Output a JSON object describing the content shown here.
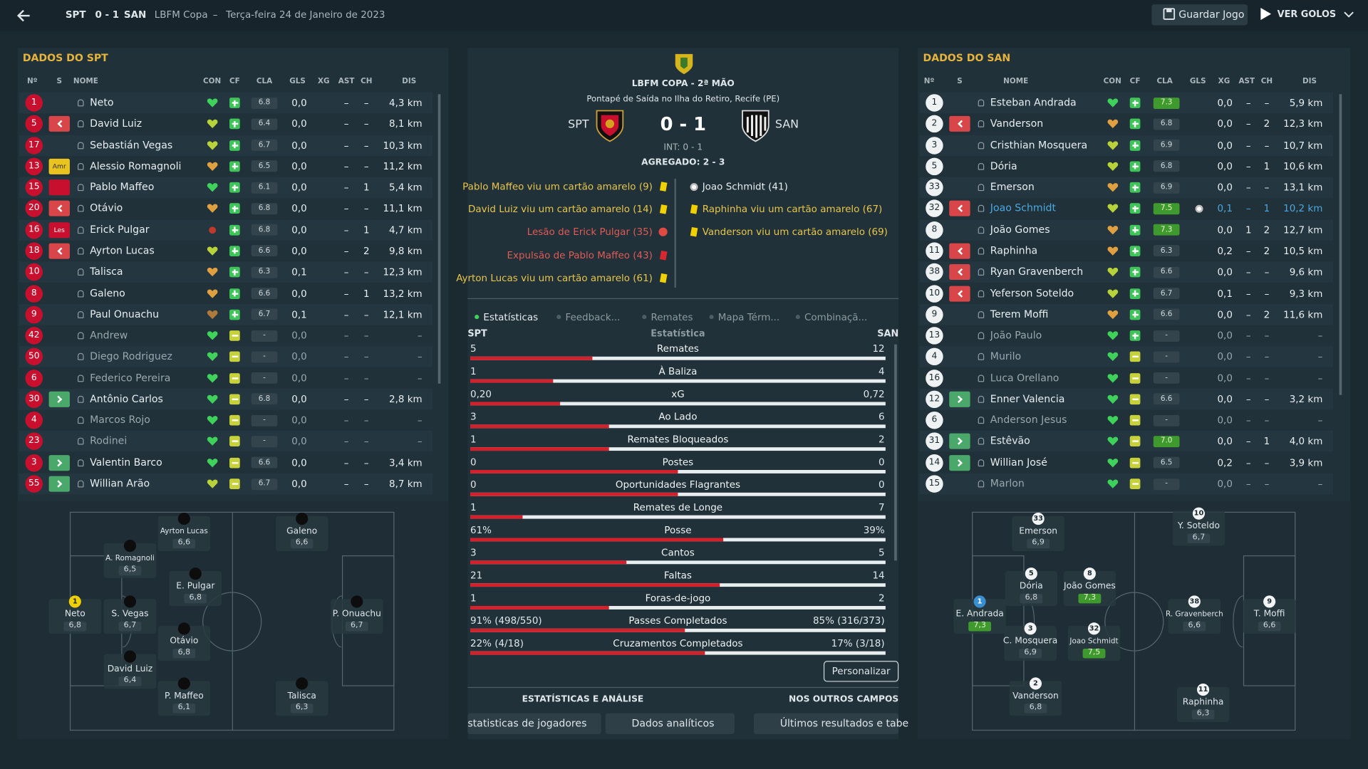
{
  "topbar": {
    "home": "SPT",
    "score": "0 - 1",
    "away": "SAN",
    "competition": "LBFM Copa",
    "separator": "–",
    "date": "Terça-feira 24 de Janeiro de 2023",
    "save": "Guardar Jogo",
    "goals": "VER GOLOS"
  },
  "columns": [
    "Nº",
    "S",
    "NOME",
    "CON",
    "CF",
    "CLA",
    "GLS",
    "XG",
    "AST",
    "CH",
    "DIS"
  ],
  "home_panel": {
    "title": "DADOS DO SPT",
    "players": [
      {
        "num": "1",
        "name": "Neto",
        "cla": "6.8",
        "xg": "0,0",
        "ast": "–",
        "ch": "–",
        "dis": "4,3 km"
      },
      {
        "num": "5",
        "name": "David Luiz",
        "cla": "6.4",
        "xg": "0,0",
        "ast": "–",
        "ch": "–",
        "dis": "8,1 km"
      },
      {
        "num": "17",
        "name": "Sebastián Vegas",
        "cla": "6.7",
        "xg": "0,0",
        "ast": "–",
        "ch": "–",
        "dis": "10,3 km"
      },
      {
        "num": "13",
        "tag": "Amr",
        "name": "Alessio Romagnoli",
        "cla": "6.5",
        "xg": "0,0",
        "ast": "–",
        "ch": "–",
        "dis": "11,2 km"
      },
      {
        "num": "15",
        "name": "Pablo Maffeo",
        "cla": "6.1",
        "xg": "0,0",
        "ast": "–",
        "ch": "1",
        "dis": "5,4 km"
      },
      {
        "num": "20",
        "name": "Otávio",
        "cla": "6.8",
        "xg": "0,0",
        "ast": "–",
        "ch": "–",
        "dis": "11,1 km"
      },
      {
        "num": "16",
        "tag": "Les",
        "name": "Erick Pulgar",
        "cla": "6.8",
        "xg": "0,0",
        "ast": "–",
        "ch": "1",
        "dis": "4,7 km"
      },
      {
        "num": "18",
        "name": "Ayrton Lucas",
        "cla": "6.6",
        "xg": "0,0",
        "ast": "–",
        "ch": "2",
        "dis": "9,8 km"
      },
      {
        "num": "10",
        "name": "Talisca",
        "cla": "6.3",
        "xg": "0,1",
        "ast": "–",
        "ch": "–",
        "dis": "12,3 km"
      },
      {
        "num": "8",
        "name": "Galeno",
        "cla": "6.6",
        "xg": "0,0",
        "ast": "–",
        "ch": "1",
        "dis": "13,2 km"
      },
      {
        "num": "9",
        "name": "Paul Onuachu",
        "cla": "6.7",
        "xg": "0,1",
        "ast": "–",
        "ch": "–",
        "dis": "12,1 km"
      },
      {
        "num": "42",
        "name": "Andrew",
        "cla": "-",
        "xg": "0,0",
        "ast": "–",
        "ch": "–",
        "dis": "–"
      },
      {
        "num": "50",
        "name": "Diego Rodriguez",
        "cla": "-",
        "xg": "0,0",
        "ast": "–",
        "ch": "–",
        "dis": "–"
      },
      {
        "num": "6",
        "name": "Federico Pereira",
        "cla": "-",
        "xg": "0,0",
        "ast": "–",
        "ch": "–",
        "dis": "–"
      },
      {
        "num": "30",
        "name": "Antônio Carlos",
        "cla": "6.8",
        "xg": "0,0",
        "ast": "–",
        "ch": "–",
        "dis": "2,8 km"
      },
      {
        "num": "4",
        "name": "Marcos Rojo",
        "cla": "-",
        "xg": "0,0",
        "ast": "–",
        "ch": "–",
        "dis": "–"
      },
      {
        "num": "23",
        "name": "Rodinei",
        "cla": "-",
        "xg": "0,0",
        "ast": "–",
        "ch": "–",
        "dis": "–"
      },
      {
        "num": "3",
        "name": "Valentin Barco",
        "cla": "6.6",
        "xg": "0,0",
        "ast": "–",
        "ch": "–",
        "dis": "3,4 km"
      },
      {
        "num": "55",
        "name": "Willian Arão",
        "cla": "6.7",
        "xg": "0,0",
        "ast": "–",
        "ch": "–",
        "dis": "8,7 km"
      }
    ]
  },
  "away_panel": {
    "title": "DADOS DO SAN",
    "players": [
      {
        "num": "1",
        "name": "Esteban Andrada",
        "cla": "7.3",
        "xg": "0,0",
        "ast": "–",
        "ch": "–",
        "dis": "5,9 km"
      },
      {
        "num": "2",
        "name": "Vanderson",
        "cla": "6.8",
        "xg": "0,0",
        "ast": "–",
        "ch": "2",
        "dis": "12,3 km"
      },
      {
        "num": "3",
        "name": "Cristhian Mosquera",
        "cla": "6.9",
        "xg": "0,0",
        "ast": "–",
        "ch": "–",
        "dis": "10,7 km"
      },
      {
        "num": "5",
        "name": "Dória",
        "cla": "6.8",
        "xg": "0,0",
        "ast": "–",
        "ch": "1",
        "dis": "10,6 km"
      },
      {
        "num": "33",
        "name": "Emerson",
        "cla": "6.9",
        "xg": "0,0",
        "ast": "–",
        "ch": "–",
        "dis": "13,1 km"
      },
      {
        "num": "32",
        "name": "Joao Schmidt",
        "cla": "7.5",
        "xg": "0,1",
        "ast": "–",
        "ch": "1",
        "dis": "10,2 km"
      },
      {
        "num": "8",
        "name": "João Gomes",
        "cla": "7.3",
        "xg": "0,0",
        "ast": "1",
        "ch": "2",
        "dis": "12,7 km"
      },
      {
        "num": "11",
        "name": "Raphinha",
        "cla": "6.3",
        "xg": "0,2",
        "ast": "–",
        "ch": "2",
        "dis": "10,5 km"
      },
      {
        "num": "38",
        "name": "Ryan Gravenberch",
        "cla": "6.6",
        "xg": "0,0",
        "ast": "–",
        "ch": "–",
        "dis": "9,6 km"
      },
      {
        "num": "10",
        "name": "Yeferson Soteldo",
        "cla": "6.7",
        "xg": "0,1",
        "ast": "–",
        "ch": "–",
        "dis": "9,3 km"
      },
      {
        "num": "9",
        "name": "Terem Moffi",
        "cla": "6.6",
        "xg": "0,0",
        "ast": "–",
        "ch": "2",
        "dis": "11,6 km"
      },
      {
        "num": "13",
        "name": "João Paulo",
        "cla": "-",
        "xg": "0,0",
        "ast": "–",
        "ch": "–",
        "dis": "–"
      },
      {
        "num": "4",
        "name": "Murilo",
        "cla": "-",
        "xg": "0,0",
        "ast": "–",
        "ch": "–",
        "dis": "–"
      },
      {
        "num": "16",
        "name": "Luca Orellano",
        "cla": "-",
        "xg": "0,0",
        "ast": "–",
        "ch": "–",
        "dis": "–"
      },
      {
        "num": "12",
        "name": "Enner Valencia",
        "cla": "6.6",
        "xg": "0,0",
        "ast": "–",
        "ch": "–",
        "dis": "3,2 km"
      },
      {
        "num": "6",
        "name": "Anderson Jesus",
        "cla": "-",
        "xg": "0,0",
        "ast": "–",
        "ch": "–",
        "dis": "–"
      },
      {
        "num": "31",
        "name": "Estêvão",
        "cla": "7.0",
        "xg": "0,0",
        "ast": "–",
        "ch": "1",
        "dis": "4,0 km"
      },
      {
        "num": "14",
        "name": "Willian José",
        "cla": "6.5",
        "xg": "0,2",
        "ast": "–",
        "ch": "–",
        "dis": "3,9 km"
      },
      {
        "num": "15",
        "name": "Marlon",
        "cla": "-",
        "xg": "0,0",
        "ast": "–",
        "ch": "–",
        "dis": "–"
      }
    ]
  },
  "match": {
    "competition": "LBFM COPA - 2ª MÃO",
    "venue": "Pontapé de Saída no Ilha do Retiro, Recife (PE)",
    "home": "SPT",
    "score": "0 - 1",
    "away": "SAN",
    "half_time": "INT: 0 - 1",
    "aggregate": "AGREGADO: 2 - 3"
  },
  "events": {
    "home": [
      "Pablo Maffeo viu um cartão amarelo (9)",
      "David Luiz viu um cartão amarelo (14)",
      "Lesão de Erick Pulgar (35)",
      "Expulsão de Pablo Maffeo (43)",
      "Ayrton Lucas viu um cartão amarelo (61)"
    ],
    "away": [
      "Joao Schmidt (41)",
      "Raphinha viu um cartão amarelo (67)",
      "Vanderson viu um cartão amarelo (69)"
    ]
  },
  "tabs": [
    "Estatísticas",
    "Feedback...",
    "Remates",
    "Mapa Térm...",
    "Combinaçã..."
  ],
  "stats": {
    "home": "SPT",
    "label": "Estatística",
    "away": "SAN",
    "rows": [
      {
        "name": "Remates",
        "home": "5",
        "away": "12"
      },
      {
        "name": "À Baliza",
        "home": "1",
        "away": "4"
      },
      {
        "name": "xG",
        "home": "0,20",
        "away": "0,72"
      },
      {
        "name": "Ao Lado",
        "home": "3",
        "away": "6"
      },
      {
        "name": "Remates Bloqueados",
        "home": "1",
        "away": "2"
      },
      {
        "name": "Postes",
        "home": "0",
        "away": "0"
      },
      {
        "name": "Oportunidades Flagrantes",
        "home": "0",
        "away": "0"
      },
      {
        "name": "Remates de Longe",
        "home": "1",
        "away": "7"
      },
      {
        "name": "Posse",
        "home": "61%",
        "away": "39%"
      },
      {
        "name": "Cantos",
        "home": "3",
        "away": "5"
      },
      {
        "name": "Faltas",
        "home": "21",
        "away": "14"
      },
      {
        "name": "Foras-de-jogo",
        "home": "1",
        "away": "2"
      },
      {
        "name": "Passes Completados",
        "home": "91% (498/550)",
        "away": "85% (316/373)"
      },
      {
        "name": "Cruzamentos Completados",
        "home": "22% (4/18)",
        "away": "17% (3/18)"
      }
    ]
  },
  "customize": "Personalizar",
  "footer": {
    "analysis": "ESTATÍSTICAS E ANÁLISE",
    "other": "NOS OUTROS CAMPOS",
    "buttons": [
      "statisticas de jogadores",
      "Dados analíticos",
      "Últimos resultados e tabe"
    ]
  },
  "home_pitch": [
    {
      "name": "Ayrton Lucas",
      "rating": "6,6"
    },
    {
      "name": "Galeno",
      "rating": "6,6"
    },
    {
      "name": "A. Romagnoli",
      "rating": "6,5"
    },
    {
      "name": "E. Pulgar",
      "rating": "6,8"
    },
    {
      "num": "1",
      "name": "Neto",
      "rating": "6,8"
    },
    {
      "name": "S. Vegas",
      "rating": "6,7"
    },
    {
      "name": "P. Onuachu",
      "rating": "6,7"
    },
    {
      "name": "Otávio",
      "rating": "6,8"
    },
    {
      "name": "David Luiz",
      "rating": "6,4"
    },
    {
      "name": "P. Maffeo",
      "rating": "6,1"
    },
    {
      "name": "Talisca",
      "rating": "6,3"
    }
  ],
  "away_pitch": [
    {
      "num": "33",
      "name": "Emerson",
      "rating": "6,9"
    },
    {
      "num": "10",
      "name": "Y. Soteldo",
      "rating": "6,7"
    },
    {
      "num": "5",
      "name": "Dória",
      "rating": "6,8"
    },
    {
      "num": "8",
      "name": "João Gomes",
      "rating": "7,3"
    },
    {
      "num": "1",
      "name": "E. Andrada",
      "rating": "7,3"
    },
    {
      "num": "38",
      "name": "R. Gravenberch",
      "rating": "6,6"
    },
    {
      "num": "9",
      "name": "T. Moffi",
      "rating": "6,6"
    },
    {
      "num": "3",
      "name": "C. Mosquera",
      "rating": "6,9"
    },
    {
      "num": "32",
      "name": "Joao Schmidt",
      "rating": "7,5"
    },
    {
      "num": "2",
      "name": "Vanderson",
      "rating": "6,8"
    },
    {
      "num": "11",
      "name": "Raphinha",
      "rating": "6,3"
    }
  ]
}
